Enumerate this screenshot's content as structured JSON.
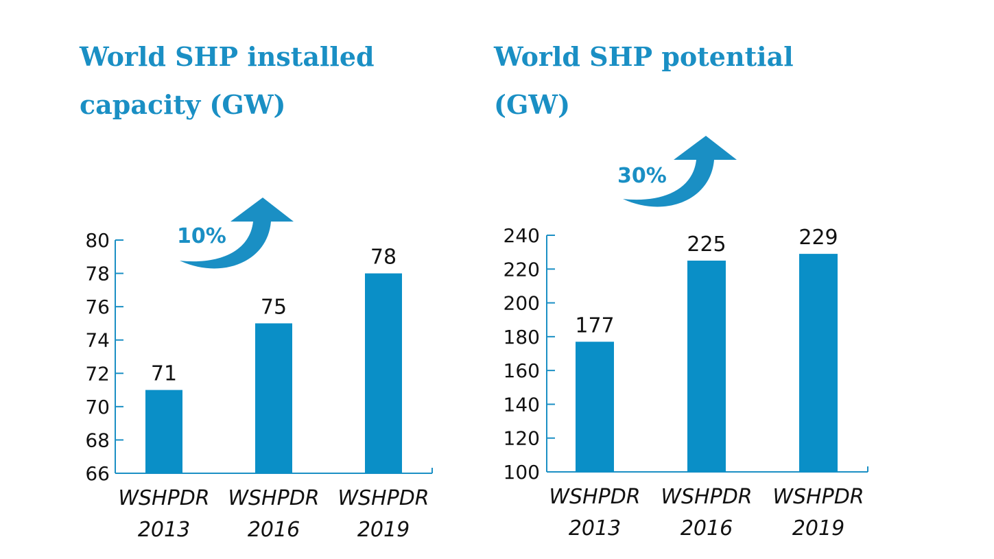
{
  "colors": {
    "accent": "#1a8fc4",
    "bar": "#0a8fc7",
    "axis": "#1a8fc4",
    "text": "#111111"
  },
  "chart_data": [
    {
      "type": "bar",
      "title": "World SHP installed capacity (GW)",
      "categories": [
        "WSHPDR 2013",
        "WSHPDR 2016",
        "WSHPDR 2019"
      ],
      "category_lines": [
        [
          "WSHPDR",
          "2013"
        ],
        [
          "WSHPDR",
          "2016"
        ],
        [
          "WSHPDR",
          "2019"
        ]
      ],
      "values": [
        71,
        75,
        78
      ],
      "value_labels": [
        "71",
        "75",
        "78"
      ],
      "ylim": [
        66,
        80
      ],
      "yticks": [
        66,
        68,
        70,
        72,
        74,
        76,
        78,
        80
      ],
      "ytick_labels": [
        "66",
        "68",
        "70",
        "72",
        "74",
        "76",
        "78",
        "80"
      ],
      "xlabel": "",
      "ylabel": "",
      "grid": false,
      "annotation": {
        "label": "10%",
        "icon": "curved-up-arrow-icon"
      }
    },
    {
      "type": "bar",
      "title": "World SHP potential (GW)",
      "categories": [
        "WSHPDR 2013",
        "WSHPDR 2016",
        "WSHPDR 2019"
      ],
      "category_lines": [
        [
          "WSHPDR",
          "2013"
        ],
        [
          "WSHPDR",
          "2016"
        ],
        [
          "WSHPDR",
          "2019"
        ]
      ],
      "values": [
        177,
        225,
        229
      ],
      "value_labels": [
        "177",
        "225",
        "229"
      ],
      "ylim": [
        100,
        240
      ],
      "yticks": [
        100,
        120,
        140,
        160,
        180,
        200,
        220,
        240
      ],
      "ytick_labels": [
        "100",
        "120",
        "140",
        "160",
        "180",
        "200",
        "220",
        "240"
      ],
      "xlabel": "",
      "ylabel": "",
      "grid": false,
      "annotation": {
        "label": "30%",
        "icon": "curved-up-arrow-icon"
      }
    }
  ]
}
